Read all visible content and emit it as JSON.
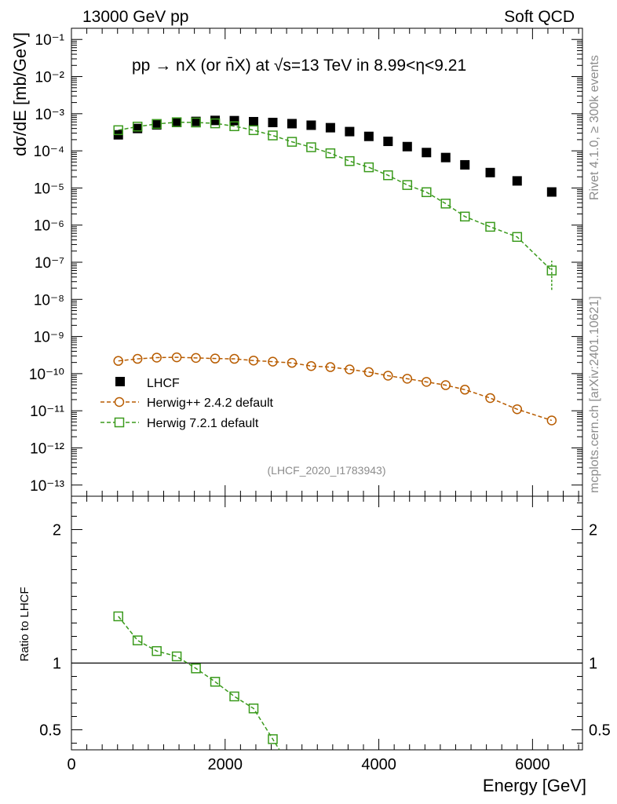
{
  "header": {
    "energy_label": "13000 GeV pp",
    "category": "Soft QCD"
  },
  "side_text": {
    "rivet": "Rivet 4.1.0, ≥ 300k events",
    "source": "mcplots.cern.ch [arXiv:2401.10621]"
  },
  "chart_data": {
    "type": "scatter",
    "title": "pp → nX (or n̄X) at √s=13 TeV in 8.99<η<9.21",
    "analysis_tag": "(LHCF_2020_I1783943)",
    "xlabel": "Energy [GeV]",
    "ylabel": "dσ/dE [mb/GeV]",
    "ratio_ylabel": "Ratio to LHCF",
    "xlim": [
      0,
      6650
    ],
    "ylim": [
      5e-14,
      0.2
    ],
    "ratio_ylim": [
      0.35,
      2.25
    ],
    "x_ticks": [
      0,
      2000,
      4000,
      6000
    ],
    "x_tick_labels": [
      "0",
      "2000",
      "4000",
      "6000"
    ],
    "y_ticks": [
      -1,
      -2,
      -3,
      -4,
      -5,
      -6,
      -7,
      -8,
      -9,
      -10,
      -11,
      -12,
      -13
    ],
    "y_tick_labels": [
      "10⁻¹",
      "10⁻²",
      "10⁻³",
      "10⁻⁴",
      "10⁻⁵",
      "10⁻⁶",
      "10⁻⁷",
      "10⁻⁸",
      "10⁻⁹",
      "10⁻¹⁰",
      "10⁻¹¹",
      "10⁻¹²",
      "10⁻¹³"
    ],
    "ratio_ticks": [
      0.5,
      1,
      2
    ],
    "ratio_tick_labels": [
      "0.5",
      "1",
      "2"
    ],
    "legend_position": "center-left",
    "series": [
      {
        "name": "LHCF",
        "marker": "filled-square",
        "color": "#000000",
        "x": [
          610,
          860,
          1110,
          1370,
          1620,
          1870,
          2120,
          2370,
          2620,
          2870,
          3120,
          3370,
          3620,
          3870,
          4120,
          4370,
          4620,
          4870,
          5120,
          5450,
          5800,
          6250
        ],
        "y": [
          0.00027,
          0.0004,
          0.0005,
          0.00058,
          0.00062,
          0.00066,
          0.00065,
          0.00061,
          0.00058,
          0.00054,
          0.00049,
          0.00042,
          0.00033,
          0.000245,
          0.00018,
          0.00013,
          9e-05,
          6.6e-05,
          4.2e-05,
          2.6e-05,
          1.55e-05,
          7.8e-06
        ]
      },
      {
        "name": "Herwig++ 2.4.2 default",
        "marker": "open-circle",
        "color": "#b85c00",
        "x": [
          610,
          860,
          1110,
          1370,
          1620,
          1870,
          2120,
          2370,
          2620,
          2870,
          3120,
          3370,
          3620,
          3870,
          4120,
          4370,
          4620,
          4870,
          5120,
          5450,
          5800,
          6250
        ],
        "y": [
          2.2e-10,
          2.5e-10,
          2.7e-10,
          2.75e-10,
          2.65e-10,
          2.55e-10,
          2.5e-10,
          2.25e-10,
          2.1e-10,
          1.95e-10,
          1.6e-10,
          1.5e-10,
          1.3e-10,
          1.1e-10,
          8.8e-11,
          7.3e-11,
          6e-11,
          4.9e-11,
          3.7e-11,
          2.2e-11,
          1.1e-11,
          5.5e-12
        ]
      },
      {
        "name": "Herwig 7.2.1 default",
        "marker": "open-square",
        "color": "#3a9a1c",
        "x": [
          610,
          860,
          1110,
          1370,
          1620,
          1870,
          2120,
          2370,
          2620,
          2870,
          3120,
          3370,
          3620,
          3870,
          4120,
          4370,
          4620,
          4870,
          5120,
          5450,
          5800,
          6250
        ],
        "y": [
          0.00036,
          0.00045,
          0.00053,
          0.00059,
          0.00058,
          0.00055,
          0.00046,
          0.00036,
          0.00026,
          0.000175,
          0.000125,
          8.6e-05,
          5.3e-05,
          3.6e-05,
          2.2e-05,
          1.2e-05,
          7.7e-06,
          3.8e-06,
          1.7e-06,
          9e-07,
          4.8e-07,
          6e-08
        ],
        "y_err_last": [
          1.8e-08,
          1.1e-07
        ],
        "ratio": [
          1.35,
          1.17,
          1.09,
          1.05,
          0.96,
          0.86,
          0.75,
          0.66,
          0.43
        ]
      }
    ]
  }
}
